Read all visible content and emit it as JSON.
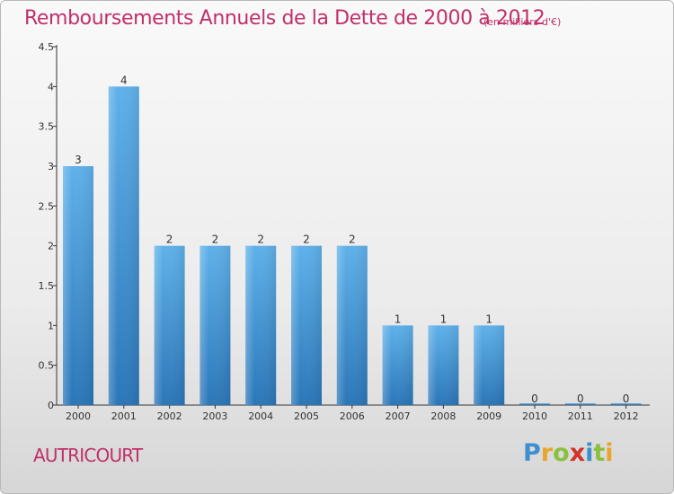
{
  "chart_data": {
    "type": "bar",
    "title": "Remboursements Annuels de la Dette de 2000 à 2012",
    "subtitle": "(en milliers d'€)",
    "categories": [
      "2000",
      "2001",
      "2002",
      "2003",
      "2004",
      "2005",
      "2006",
      "2007",
      "2008",
      "2009",
      "2010",
      "2011",
      "2012"
    ],
    "values": [
      3,
      4,
      2,
      2,
      2,
      2,
      2,
      1,
      1,
      1,
      0,
      0,
      0
    ],
    "data_labels": [
      "3",
      "4",
      "2",
      "2",
      "2",
      "2",
      "2",
      "1",
      "1",
      "1",
      "0",
      "0",
      "0"
    ],
    "ylim": [
      0,
      4.5
    ],
    "yticks": [
      "0",
      "0.5",
      "1",
      "1.5",
      "2",
      "2.5",
      "3",
      "3.5",
      "4",
      "4.5"
    ],
    "bar_color": "#3a8fd6",
    "title_color": "#c0306a"
  },
  "commune": "AUTRICOURT",
  "logo": "Proxiti"
}
